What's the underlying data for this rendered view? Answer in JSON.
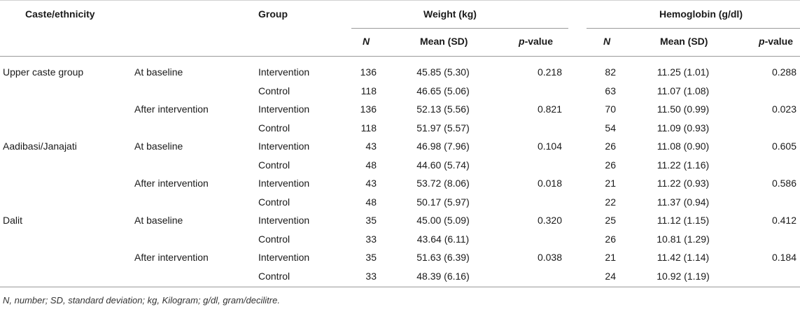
{
  "headers": {
    "caste": "Caste/ethnicity",
    "group": "Group",
    "weight": "Weight (kg)",
    "hemoglobin": "Hemoglobin (g/dl)",
    "n": "N",
    "mean": "Mean (SD)",
    "p_italic": "p",
    "p_rest": "-value"
  },
  "rows": [
    {
      "caste": "Upper caste group",
      "time": "At baseline",
      "group": "Intervention",
      "wn": "136",
      "wm": "45.85 (5.30)",
      "wp": "0.218",
      "hn": "82",
      "hm": "11.25 (1.01)",
      "hp": "0.288"
    },
    {
      "caste": "",
      "time": "",
      "group": "Control",
      "wn": "118",
      "wm": "46.65 (5.06)",
      "wp": "",
      "hn": "63",
      "hm": "11.07 (1.08)",
      "hp": ""
    },
    {
      "caste": "",
      "time": "After intervention",
      "group": "Intervention",
      "wn": "136",
      "wm": "52.13 (5.56)",
      "wp": "0.821",
      "hn": "70",
      "hm": "11.50 (0.99)",
      "hp": "0.023"
    },
    {
      "caste": "",
      "time": "",
      "group": "Control",
      "wn": "118",
      "wm": "51.97 (5.57)",
      "wp": "",
      "hn": "54",
      "hm": "11.09 (0.93)",
      "hp": ""
    },
    {
      "caste": "Aadibasi/Janajati",
      "time": "At baseline",
      "group": "Intervention",
      "wn": "43",
      "wm": "46.98 (7.96)",
      "wp": "0.104",
      "hn": "26",
      "hm": "11.08 (0.90)",
      "hp": "0.605"
    },
    {
      "caste": "",
      "time": "",
      "group": "Control",
      "wn": "48",
      "wm": "44.60 (5.74)",
      "wp": "",
      "hn": "26",
      "hm": "11.22 (1.16)",
      "hp": ""
    },
    {
      "caste": "",
      "time": "After intervention",
      "group": "Intervention",
      "wn": "43",
      "wm": "53.72 (8.06)",
      "wp": "0.018",
      "hn": "21",
      "hm": "11.22 (0.93)",
      "hp": "0.586"
    },
    {
      "caste": "",
      "time": "",
      "group": "Control",
      "wn": "48",
      "wm": "50.17 (5.97)",
      "wp": "",
      "hn": "22",
      "hm": "11.37 (0.94)",
      "hp": ""
    },
    {
      "caste": "Dalit",
      "time": "At baseline",
      "group": "Intervention",
      "wn": "35",
      "wm": "45.00 (5.09)",
      "wp": "0.320",
      "hn": "25",
      "hm": "11.12 (1.15)",
      "hp": "0.412"
    },
    {
      "caste": "",
      "time": "",
      "group": "Control",
      "wn": "33",
      "wm": "43.64 (6.11)",
      "wp": "",
      "hn": "26",
      "hm": "10.81 (1.29)",
      "hp": ""
    },
    {
      "caste": "",
      "time": "After intervention",
      "group": "Intervention",
      "wn": "35",
      "wm": "51.63 (6.39)",
      "wp": "0.038",
      "hn": "21",
      "hm": "11.42 (1.14)",
      "hp": "0.184"
    },
    {
      "caste": "",
      "time": "",
      "group": "Control",
      "wn": "33",
      "wm": "48.39 (6.16)",
      "wp": "",
      "hn": "24",
      "hm": "10.92 (1.19)",
      "hp": ""
    }
  ],
  "footnote": "N, number; SD, standard deviation; kg, Kilogram; g/dl, gram/decilitre."
}
